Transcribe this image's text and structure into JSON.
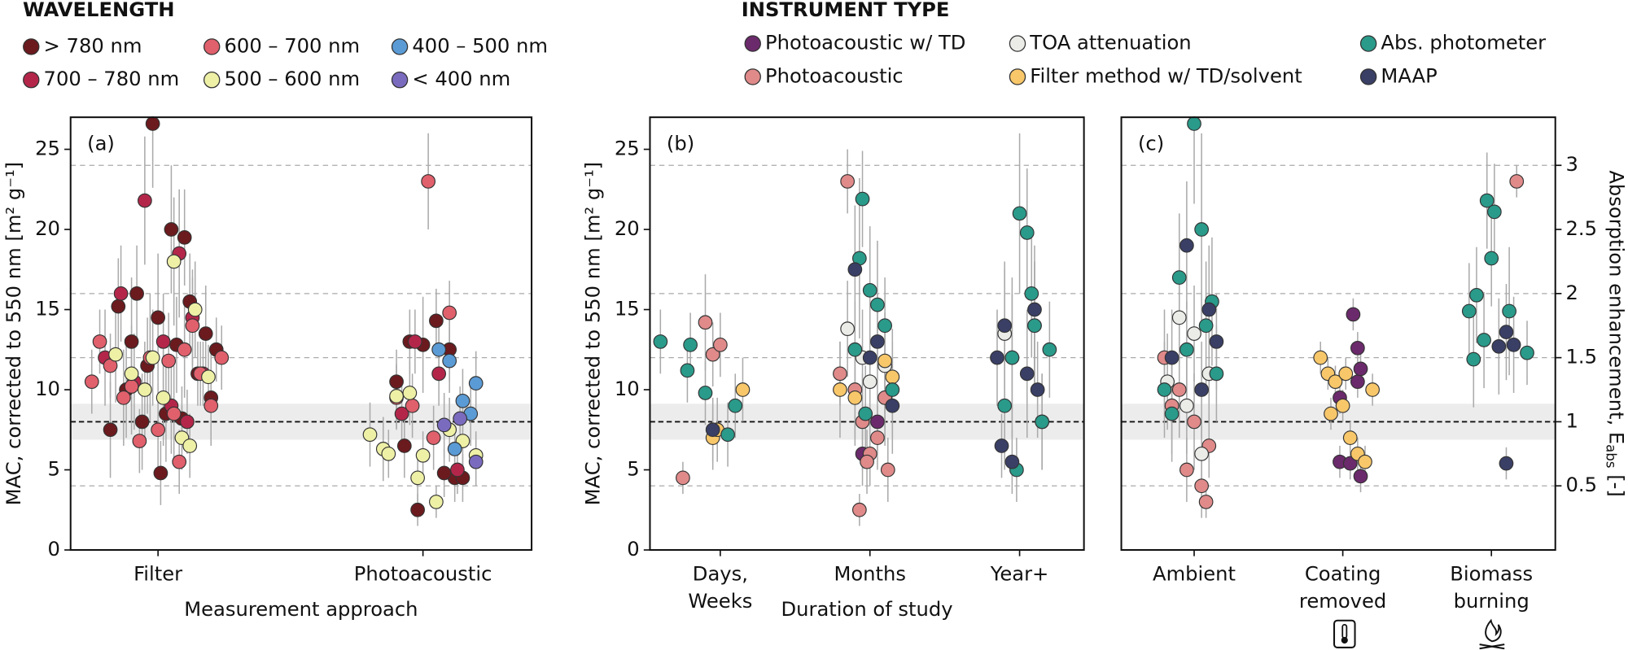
{
  "chart_data": [
    {
      "type": "scatter",
      "panel_label": "(a)",
      "legend_title": "WAVELENGTH",
      "xlabel": "Measurement approach",
      "ylabel": "MAC, corrected to 550 nm [m² g⁻¹]",
      "xlim": [
        -0.33,
        1.41
      ],
      "xticks": [
        {
          "value": 0,
          "label": [
            "Filter"
          ]
        },
        {
          "value": 1,
          "label": [
            "Photoacoustic"
          ]
        }
      ],
      "ylim": [
        0,
        27
      ],
      "yticks": [
        0,
        5,
        10,
        15,
        20,
        25
      ],
      "y2lim": [
        0,
        3.375
      ],
      "y2grid": [
        0.5,
        1.5,
        2.0,
        3.0
      ],
      "y2ref": 1.0,
      "y2band": [
        0.86,
        1.14
      ],
      "series": [
        {
          "name": "> 780 nm",
          "color": "#6b1a1e",
          "x": [
            -0.02,
            0.05,
            0.1,
            -0.08,
            0.12,
            -0.15,
            0.0,
            0.18,
            -0.1,
            0.07,
            -0.04,
            0.15,
            -0.12,
            0.2,
            0.03,
            -0.06,
            0.09,
            -0.18,
            0.22,
            0.01,
            0.95,
            1.0,
            1.05,
            1.1,
            0.9,
            1.12,
            0.98,
            1.08,
            0.93,
            1.15
          ],
          "values": [
            26.6,
            20,
            19.5,
            16,
            15.5,
            15.2,
            14.5,
            13.5,
            13,
            12.8,
            11.5,
            11,
            10,
            9.5,
            8.5,
            8,
            8.2,
            7.5,
            12.5,
            4.8,
            13,
            12.8,
            14.3,
            12.5,
            10.5,
            4.5,
            2.5,
            4.8,
            6.5,
            4.5
          ],
          "errors": [
            4,
            4,
            3,
            3,
            3,
            3,
            4,
            3,
            4,
            3,
            3,
            2,
            3,
            3,
            3,
            3,
            2,
            3,
            2,
            2,
            2,
            3,
            2,
            2,
            2,
            1.5,
            1,
            1.5,
            2,
            1.5
          ]
        },
        {
          "name": "700 – 780 nm",
          "color": "#b3264a",
          "x": [
            -0.05,
            0.08,
            -0.14,
            0.13,
            0.02,
            -0.2,
            0.17,
            -0.09,
            0.05,
            0.11,
            0.97,
            1.06,
            1.13,
            0.92
          ],
          "values": [
            21.8,
            18.5,
            16,
            14.5,
            13,
            12,
            11,
            10.5,
            9,
            8,
            13,
            11,
            5,
            8.5
          ],
          "errors": [
            4,
            4,
            3,
            3,
            3,
            3,
            2,
            3,
            3,
            2,
            2,
            2,
            1.5,
            2
          ]
        },
        {
          "name": "600 – 700 nm",
          "color": "#e0606c",
          "x": [
            -0.22,
            -0.18,
            -0.1,
            -0.03,
            0.04,
            0.1,
            0.16,
            0.24,
            -0.13,
            0.0,
            0.08,
            -0.07,
            0.2,
            -0.25,
            0.13,
            0.06,
            1.02,
            1.1,
            0.96,
            1.04,
            0.9
          ],
          "values": [
            13,
            11.5,
            10.2,
            12,
            11.8,
            12.5,
            11,
            12,
            9.5,
            7.5,
            5.5,
            6.8,
            9,
            10.5,
            14,
            8.5,
            23,
            14.8,
            9,
            7,
            9.5
          ],
          "errors": [
            2,
            2,
            3,
            4,
            3,
            3,
            2,
            2,
            3,
            3,
            2,
            2,
            2,
            2,
            3,
            3,
            3,
            2,
            2,
            2,
            2
          ]
        },
        {
          "name": "500 – 600 nm",
          "color": "#eef0a6",
          "x": [
            -0.16,
            -0.05,
            0.06,
            0.14,
            -0.1,
            0.02,
            0.09,
            0.19,
            -0.02,
            0.12,
            0.8,
            0.85,
            0.9,
            0.95,
            1.0,
            1.05,
            1.1,
            1.15,
            1.2,
            0.98,
            0.87
          ],
          "values": [
            12.2,
            10,
            18,
            15,
            11,
            9.5,
            7,
            10.8,
            12,
            6.5,
            7.2,
            6.3,
            9.6,
            9.8,
            5.9,
            3,
            7.5,
            6.8,
            5.9,
            4.5,
            6
          ],
          "errors": [
            3,
            3,
            4,
            3,
            3,
            3,
            2,
            2,
            3,
            2,
            2,
            2,
            2,
            2,
            1.5,
            1,
            2,
            2,
            1.5,
            1.5,
            1.5
          ]
        },
        {
          "name": "400 – 500 nm",
          "color": "#5b9bd5",
          "x": [
            1.06,
            1.1,
            1.15,
            1.18,
            1.2,
            1.12
          ],
          "values": [
            12.5,
            11.8,
            9.3,
            8.5,
            10.4,
            6.3
          ],
          "errors": [
            2,
            2,
            2,
            2,
            2,
            1.5
          ]
        },
        {
          "name": "< 400 nm",
          "color": "#7b6bbf",
          "x": [
            1.08,
            1.14,
            1.2
          ],
          "values": [
            7.8,
            8.2,
            5.5
          ],
          "errors": [
            2,
            2,
            1.5
          ]
        }
      ]
    },
    {
      "type": "scatter",
      "panel_label": "(b)",
      "legend_title": "INSTRUMENT TYPE",
      "xlabel": "Duration of study",
      "ylabel": "MAC, corrected to 550 nm [m² g⁻¹]",
      "xlim": [
        -0.47,
        2.43
      ],
      "xticks": [
        {
          "value": 0,
          "label": [
            "Days,",
            "Weeks"
          ]
        },
        {
          "value": 1,
          "label": [
            "Months"
          ]
        },
        {
          "value": 2,
          "label": [
            "Year+"
          ]
        }
      ],
      "ylim": [
        0,
        27
      ],
      "yticks": [
        0,
        5,
        10,
        15,
        20,
        25
      ],
      "y2lim": [
        0,
        3.375
      ],
      "y2grid": [
        0.5,
        1.5,
        2.0,
        3.0
      ],
      "y2ref": 1.0,
      "y2band": [
        0.86,
        1.14
      ],
      "series": [
        {
          "name": "Photoacoustic w/ TD",
          "color": "#6b2a6b",
          "x": [
            0.95,
            1.05,
            1.1
          ],
          "values": [
            6,
            8,
            9.5
          ],
          "errors": [
            2,
            2,
            2
          ]
        },
        {
          "name": "Photoacoustic",
          "color": "#e08a8a",
          "x": [
            -0.1,
            -0.05,
            0.0,
            -0.25,
            0.85,
            0.9,
            0.95,
            1.0,
            1.05,
            1.1,
            0.8,
            1.12,
            0.93,
            0.98
          ],
          "values": [
            14.2,
            12.2,
            12.8,
            4.5,
            23,
            10,
            8,
            6,
            7,
            9.5,
            11,
            5,
            2.5,
            5.5
          ],
          "errors": [
            3,
            2,
            2,
            1,
            2,
            3,
            3,
            2,
            2,
            3,
            2,
            2,
            1,
            2
          ]
        },
        {
          "name": "TOA attenuation",
          "color": "#ebebe8",
          "x": [
            0.85,
            0.95,
            1.1,
            1.0,
            1.9,
            2.1,
            2.15,
            1.95
          ],
          "values": [
            13.8,
            12,
            11.5,
            10.5,
            13.5,
            14,
            8,
            12
          ],
          "errors": [
            3,
            3,
            3,
            3,
            4,
            4,
            3,
            4
          ]
        },
        {
          "name": "Filter method w/ TD/solvent",
          "color": "#f8c76a",
          "x": [
            0.15,
            -0.05,
            -0.02,
            0.8,
            1.1,
            1.15,
            0.9
          ],
          "values": [
            10,
            7,
            7.5,
            10,
            11.8,
            10.8,
            9.5
          ],
          "errors": [
            2,
            2,
            2,
            3,
            3,
            3,
            3
          ]
        },
        {
          "name": "Abs. photometer",
          "color": "#2a9a8a",
          "x": [
            -0.4,
            -0.2,
            -0.22,
            -0.1,
            0.1,
            0.05,
            0.95,
            0.93,
            1.0,
            1.05,
            1.1,
            0.9,
            1.15,
            0.97,
            2.0,
            2.05,
            2.1,
            1.95,
            1.9,
            2.15,
            2.2,
            1.98,
            2.08
          ],
          "values": [
            13,
            12.8,
            11.2,
            9.8,
            9,
            7.2,
            21.9,
            18.2,
            16.2,
            15.3,
            14,
            12.5,
            10,
            8.5,
            21,
            19.8,
            14,
            12,
            9,
            8,
            12.5,
            5,
            16
          ],
          "errors": [
            2,
            2,
            2,
            2,
            2,
            2,
            3,
            5,
            4,
            4,
            3,
            3,
            3,
            3,
            5,
            4,
            4,
            5,
            4,
            3,
            3,
            2,
            4
          ]
        },
        {
          "name": "MAAP",
          "color": "#3a3f66",
          "x": [
            -0.05,
            0.9,
            1.05,
            1.0,
            1.15,
            1.85,
            1.9,
            1.95,
            2.05,
            2.1,
            1.88,
            2.12
          ],
          "values": [
            7.5,
            17.5,
            13,
            12,
            9,
            12,
            14,
            5.5,
            11,
            15,
            6.5,
            10
          ],
          "errors": [
            2,
            4,
            3,
            3,
            3,
            3,
            4,
            2,
            4,
            4,
            2,
            3
          ]
        }
      ]
    },
    {
      "type": "scatter",
      "panel_label": "(c)",
      "y2label": [
        "Absorption enhancement, E",
        "abs",
        " [-]"
      ],
      "xlim": [
        -0.49,
        2.43
      ],
      "xticks": [
        {
          "value": 0,
          "label": [
            "Ambient"
          ]
        },
        {
          "value": 1,
          "label": [
            "Coating",
            "removed"
          ]
        },
        {
          "value": 2,
          "label": [
            "Biomass",
            "burning"
          ]
        }
      ],
      "ylim": [
        0,
        27
      ],
      "y2lim": [
        0,
        3.375
      ],
      "y2ticks": [
        0.5,
        1.0,
        1.5,
        2.0,
        2.5,
        3.0
      ],
      "y2grid": [
        0.5,
        1.5,
        2.0,
        3.0
      ],
      "y2ref": 1.0,
      "y2band": [
        0.86,
        1.14
      ],
      "series": [
        {
          "name": "Photoacoustic w/ TD",
          "color": "#6b2a6b",
          "x": [
            1.07,
            1.1,
            0.98,
            1.1,
            1.12,
            0.98,
            1.05,
            1.12
          ],
          "values": [
            14.7,
            12.6,
            9.5,
            10.5,
            11.3,
            5.5,
            5.4,
            4.6
          ],
          "errors": [
            1,
            1,
            1,
            1,
            1,
            1,
            1,
            1
          ]
        },
        {
          "name": "Photoacoustic",
          "color": "#e08a8a",
          "x": [
            -0.2,
            -0.1,
            0.0,
            0.1,
            -0.05,
            0.05,
            -0.15,
            0.08,
            2.17
          ],
          "values": [
            12,
            10,
            8,
            6.5,
            5,
            4,
            9,
            3,
            23
          ],
          "errors": [
            3,
            3,
            3,
            2,
            2,
            2,
            3,
            1,
            1
          ]
        },
        {
          "name": "TOA attenuation",
          "color": "#ebebe8",
          "x": [
            -0.1,
            0.0,
            0.1,
            -0.05,
            0.05,
            -0.18
          ],
          "values": [
            14.5,
            13.5,
            11,
            9,
            6,
            10.5
          ],
          "errors": [
            3,
            3,
            3,
            3,
            2,
            3
          ]
        },
        {
          "name": "Filter method w/ TD/solvent",
          "color": "#f8c76a",
          "x": [
            0.85,
            0.9,
            0.95,
            1.0,
            1.05,
            1.1,
            1.15,
            1.2,
            0.92,
            1.02
          ],
          "values": [
            12,
            11,
            10.5,
            9,
            7,
            6,
            5.5,
            10,
            8.5,
            11
          ],
          "errors": [
            1,
            1,
            1,
            1,
            1,
            1,
            1,
            1,
            1,
            1
          ]
        },
        {
          "name": "Abs. photometer",
          "color": "#2a9a8a",
          "x": [
            0,
            0.05,
            -0.1,
            0.12,
            -0.05,
            0.15,
            -0.2,
            0.08,
            -0.15,
            1.97,
            2.02,
            2.0,
            1.85,
            1.9,
            2.12,
            1.95,
            2.24,
            1.88
          ],
          "values": [
            26.6,
            20,
            17,
            15.5,
            12.5,
            11,
            10,
            14,
            8.5,
            21.8,
            21.1,
            18.2,
            14.9,
            15.9,
            14.9,
            13.1,
            12.3,
            11.9
          ],
          "errors": [
            5,
            6,
            4,
            4,
            3,
            3,
            3,
            4,
            3,
            3,
            3,
            3,
            3,
            3,
            4,
            3,
            2,
            3
          ]
        },
        {
          "name": "MAAP",
          "color": "#3a3f66",
          "x": [
            -0.05,
            0.1,
            -0.15,
            0.05,
            0.15,
            2.05,
            2.1,
            2.15,
            2.1
          ],
          "values": [
            19,
            15,
            12,
            10,
            13,
            12.7,
            13.6,
            12.8,
            5.4
          ],
          "errors": [
            4,
            4,
            3,
            3,
            3,
            3,
            3,
            3,
            1
          ]
        }
      ]
    }
  ]
}
